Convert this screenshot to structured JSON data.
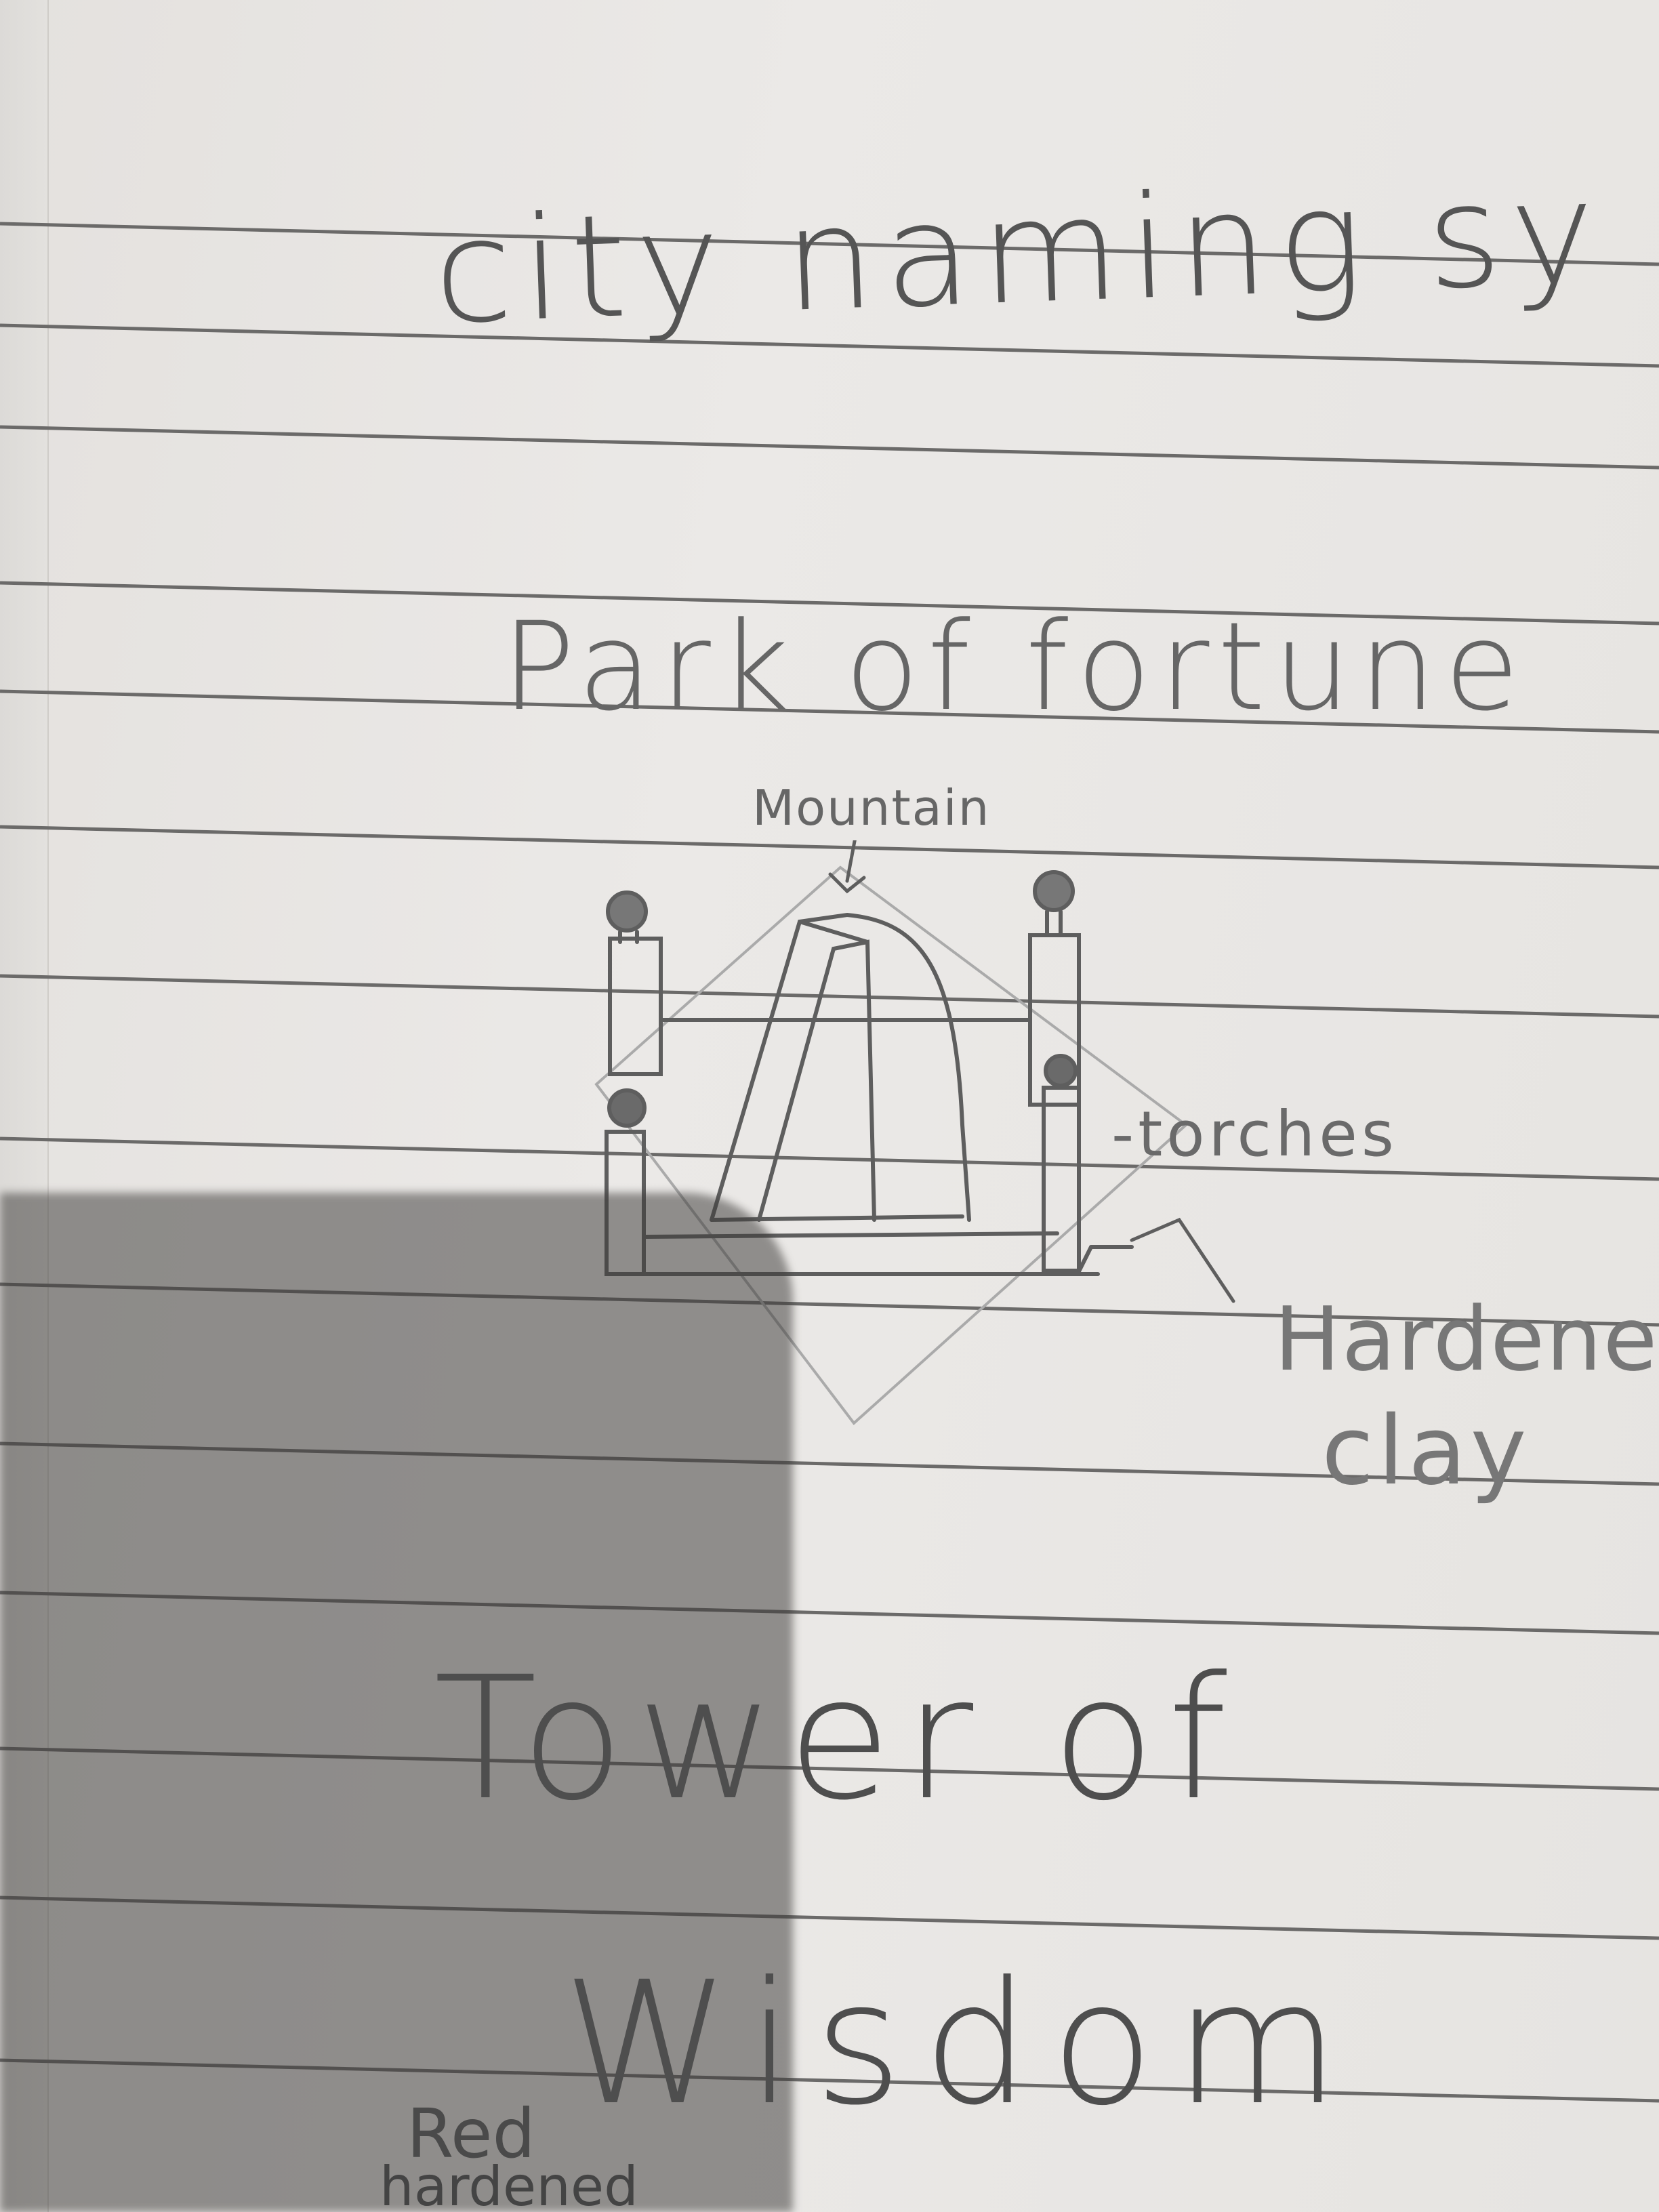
{
  "notebook": {
    "title": "city naming sy",
    "sections": [
      {
        "heading": "Park of fortune",
        "labels": {
          "mountain": "Mountain",
          "torches": "-torches",
          "clay_line1": "Hardened",
          "clay_line2": "clay"
        }
      },
      {
        "heading_line1": "Tower of",
        "heading_line2": "Wisdom",
        "note_line1": "Red",
        "note_line2": "hardened"
      }
    ]
  }
}
